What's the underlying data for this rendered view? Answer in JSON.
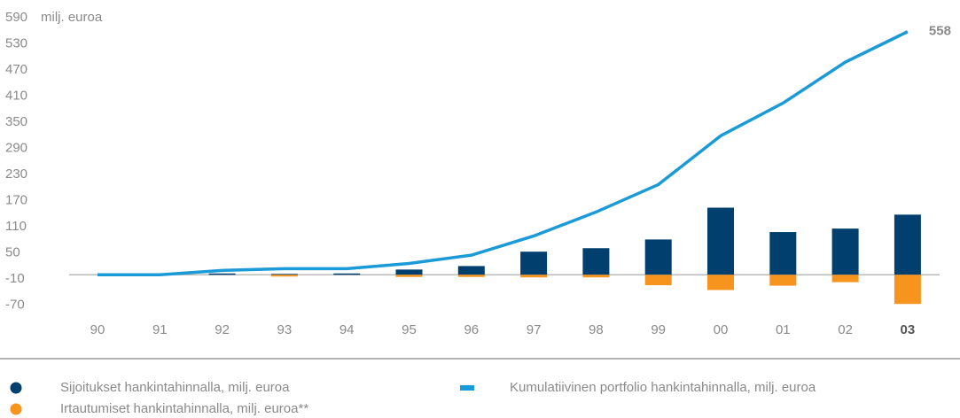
{
  "chart_data": {
    "type": "bar_line",
    "y_unit_label": "milj. euroa",
    "categories": [
      "90",
      "91",
      "92",
      "93",
      "94",
      "95",
      "96",
      "97",
      "98",
      "99",
      "00",
      "01",
      "02",
      "03"
    ],
    "series": [
      {
        "name": "Sijoitukset hankintahinnalla, milj. euroa",
        "type": "bar",
        "color": "#003f6e",
        "values": [
          0,
          0,
          3,
          2,
          3,
          12,
          20,
          53,
          61,
          81,
          154,
          98,
          106,
          138
        ]
      },
      {
        "name": "Irtautumiset hankintahinnalla, milj. euroa**",
        "type": "bar",
        "color": "#f7941d",
        "values": [
          0,
          0,
          0,
          -4,
          0,
          -5,
          -5,
          -6,
          -6,
          -24,
          -35,
          -25,
          -17,
          -67
        ]
      },
      {
        "name": "Kumulatiivinen portfolio hankintahinnalla, milj. euroa",
        "type": "line",
        "color": "#1a9ad6",
        "values": [
          0,
          0,
          10,
          14,
          14,
          26,
          45,
          89,
          144,
          207,
          319,
          394,
          488,
          558
        ]
      }
    ],
    "ylim": [
      -70,
      590
    ],
    "yticks": [
      590,
      530,
      470,
      410,
      350,
      290,
      230,
      170,
      110,
      50,
      -10,
      -70
    ]
  }
}
